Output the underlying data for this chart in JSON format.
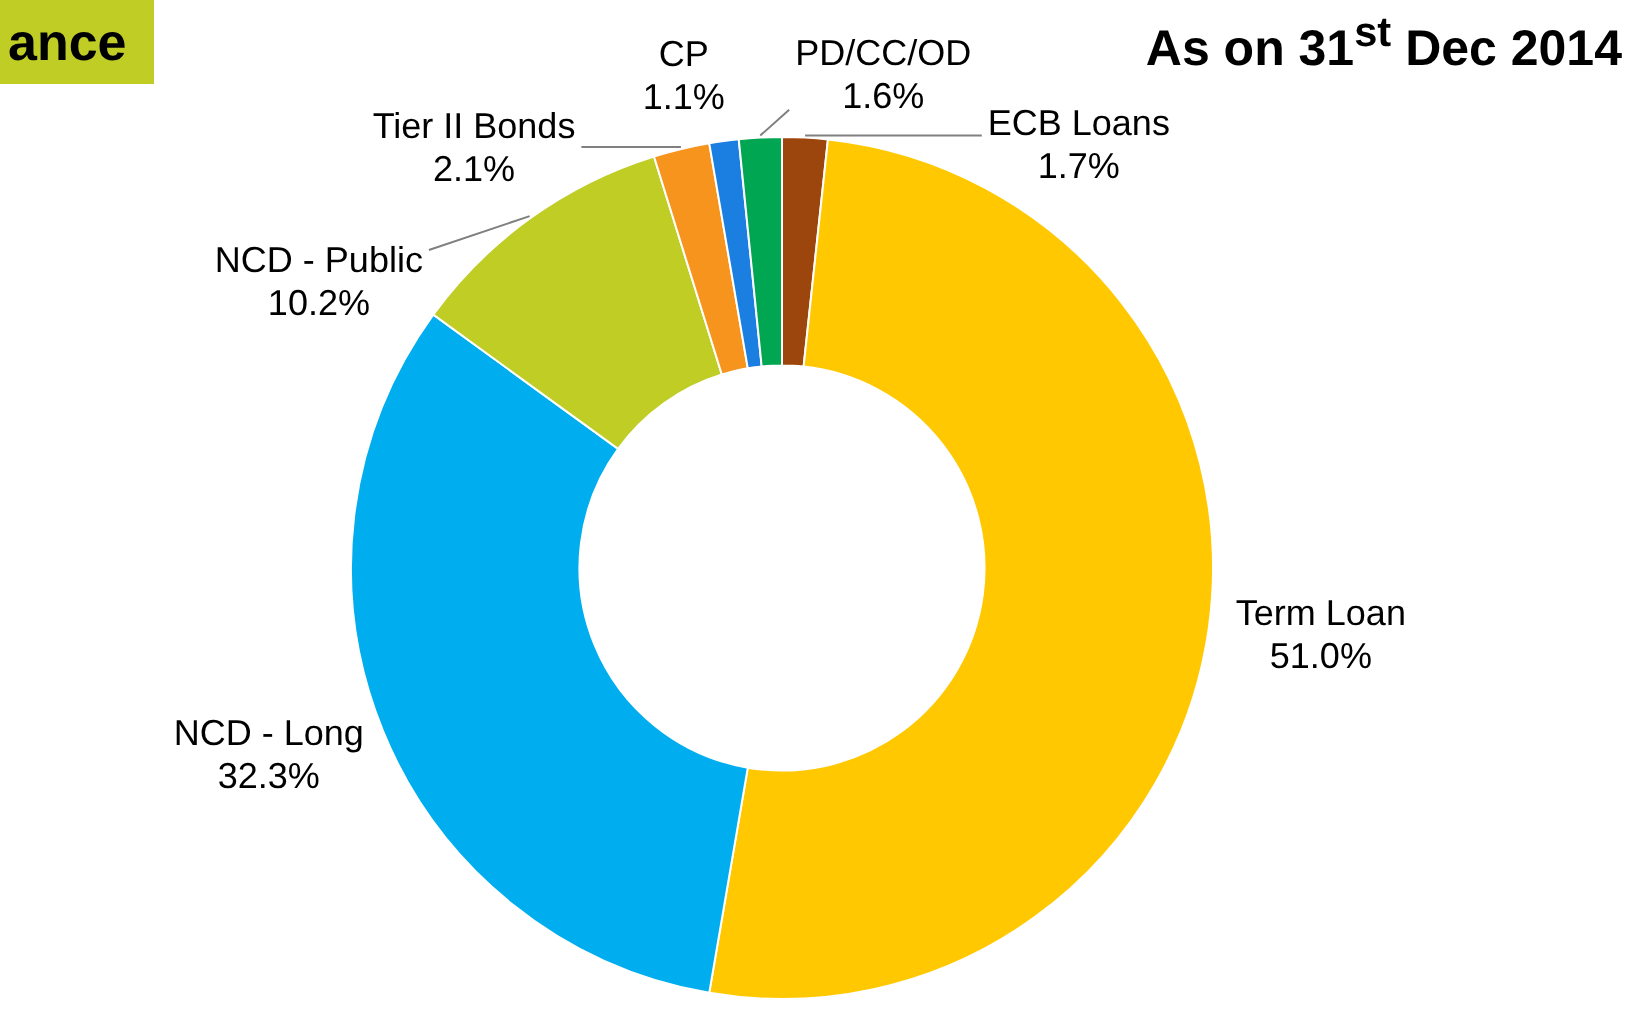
{
  "chart_data": {
    "type": "donut",
    "title": "ance",
    "subtitle": "As on 31$^{st}$ Dec 2014",
    "categories": [
      "ECB Loans",
      "Term Loan",
      "NCD - Long",
      "NCD - Public",
      "Tier II Bonds",
      "CP",
      "PD/CC/OD"
    ],
    "values": [
      1.7,
      51.0,
      32.3,
      10.2,
      2.1,
      1.1,
      1.6
    ],
    "value_labels": [
      "1.7%",
      "51.0%",
      "32.3%",
      "10.2%",
      "2.1%",
      "1.1%",
      "1.6%"
    ],
    "colors": [
      "#9c450c",
      "#ffc800",
      "#00aeef",
      "#bfcd25",
      "#f7941d",
      "#1a7fe0",
      "#00a651"
    ]
  }
}
